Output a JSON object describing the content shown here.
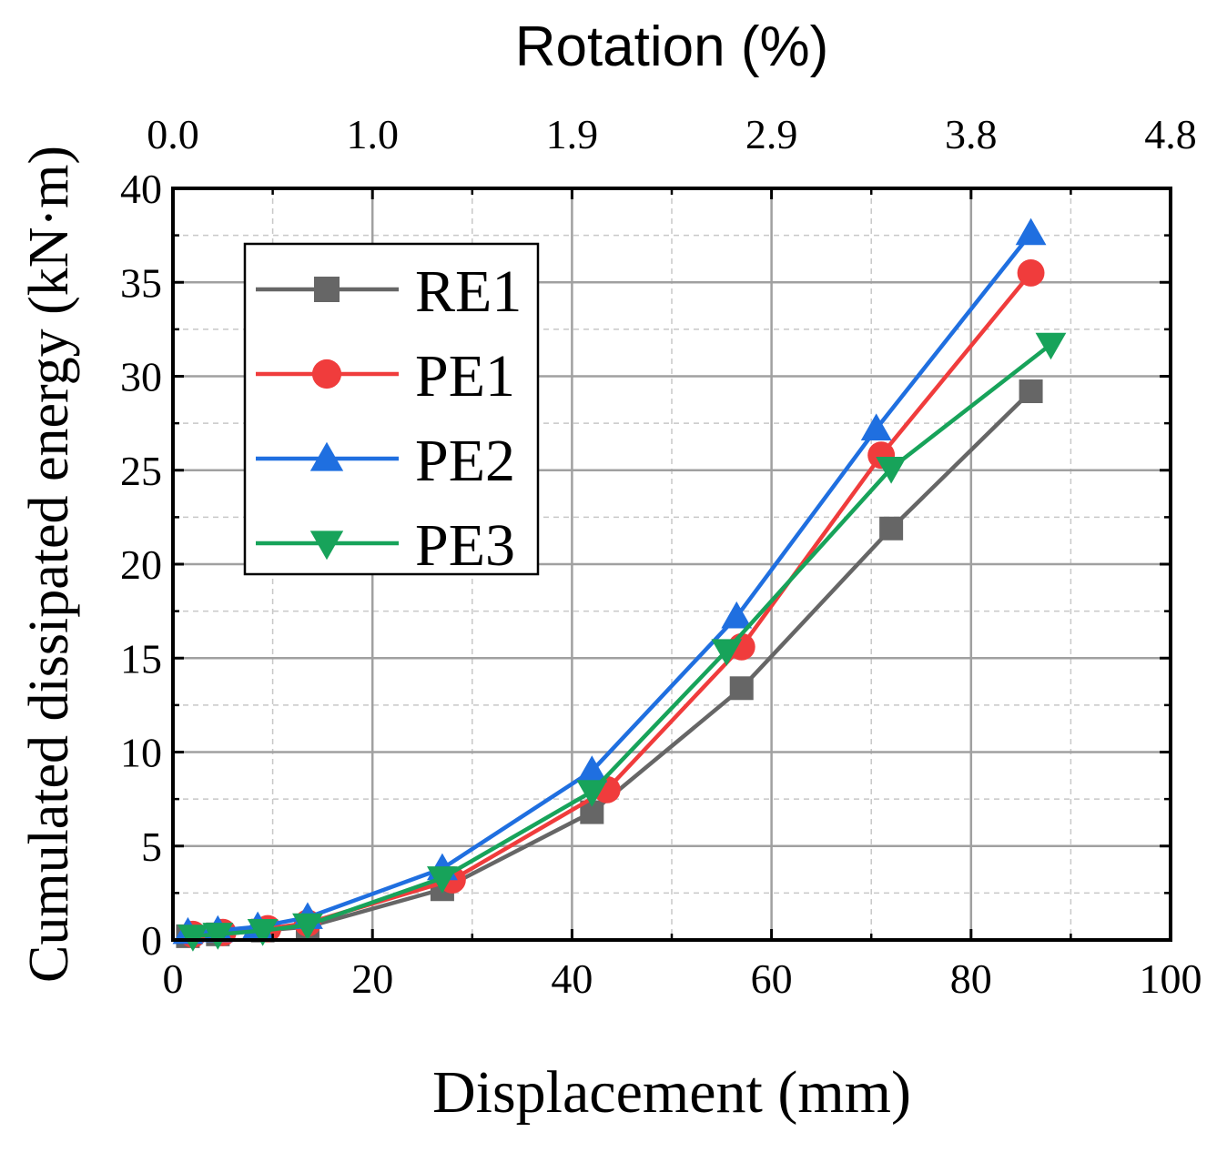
{
  "chart_data": {
    "type": "line",
    "title": "",
    "xlabel": "Displacement (mm)",
    "ylabel": "Cumulated dissipated energy (kN·m)",
    "x2label": "Rotation (%)",
    "xlim": [
      0,
      100
    ],
    "ylim": [
      0,
      40
    ],
    "xticks": [
      0,
      20,
      40,
      60,
      80,
      100
    ],
    "yticks": [
      0,
      5,
      10,
      15,
      20,
      25,
      30,
      35,
      40
    ],
    "x_tick_labels": [
      "0",
      "20",
      "40",
      "60",
      "80",
      "100"
    ],
    "y_tick_labels": [
      "0",
      "5",
      "10",
      "15",
      "20",
      "25",
      "30",
      "35",
      "40"
    ],
    "x2_tick_labels": [
      "0.0",
      "1.0",
      "1.9",
      "2.9",
      "3.8",
      "4.8"
    ],
    "grid": true,
    "legend_position": "top-left",
    "series": [
      {
        "name": "RE1",
        "color": "#666666",
        "marker": "square",
        "x": [
          1.5,
          4.5,
          9,
          13.5,
          27,
          42,
          57,
          72,
          86
        ],
        "y": [
          0.2,
          0.3,
          0.5,
          0.7,
          2.7,
          6.8,
          13.4,
          21.9,
          29.2
        ]
      },
      {
        "name": "PE1",
        "color": "#f03c3c",
        "marker": "circle",
        "x": [
          2,
          5,
          9.5,
          13.5,
          28,
          43.5,
          57,
          71,
          86
        ],
        "y": [
          0.3,
          0.4,
          0.6,
          0.9,
          3.2,
          8.0,
          15.6,
          25.8,
          35.5
        ]
      },
      {
        "name": "PE2",
        "color": "#1f6fe0",
        "marker": "triangle-up",
        "x": [
          1.5,
          4.5,
          8.5,
          13.5,
          27,
          42,
          56.5,
          70.5,
          86
        ],
        "y": [
          0.4,
          0.5,
          0.7,
          1.2,
          3.8,
          9.0,
          17.2,
          27.2,
          37.6
        ]
      },
      {
        "name": "PE3",
        "color": "#17a35a",
        "marker": "triangle-down",
        "x": [
          2,
          4.5,
          9,
          13.5,
          27,
          42,
          55.5,
          72,
          88
        ],
        "y": [
          0.2,
          0.3,
          0.5,
          0.8,
          3.3,
          7.9,
          15.4,
          25.1,
          31.7
        ]
      }
    ]
  }
}
